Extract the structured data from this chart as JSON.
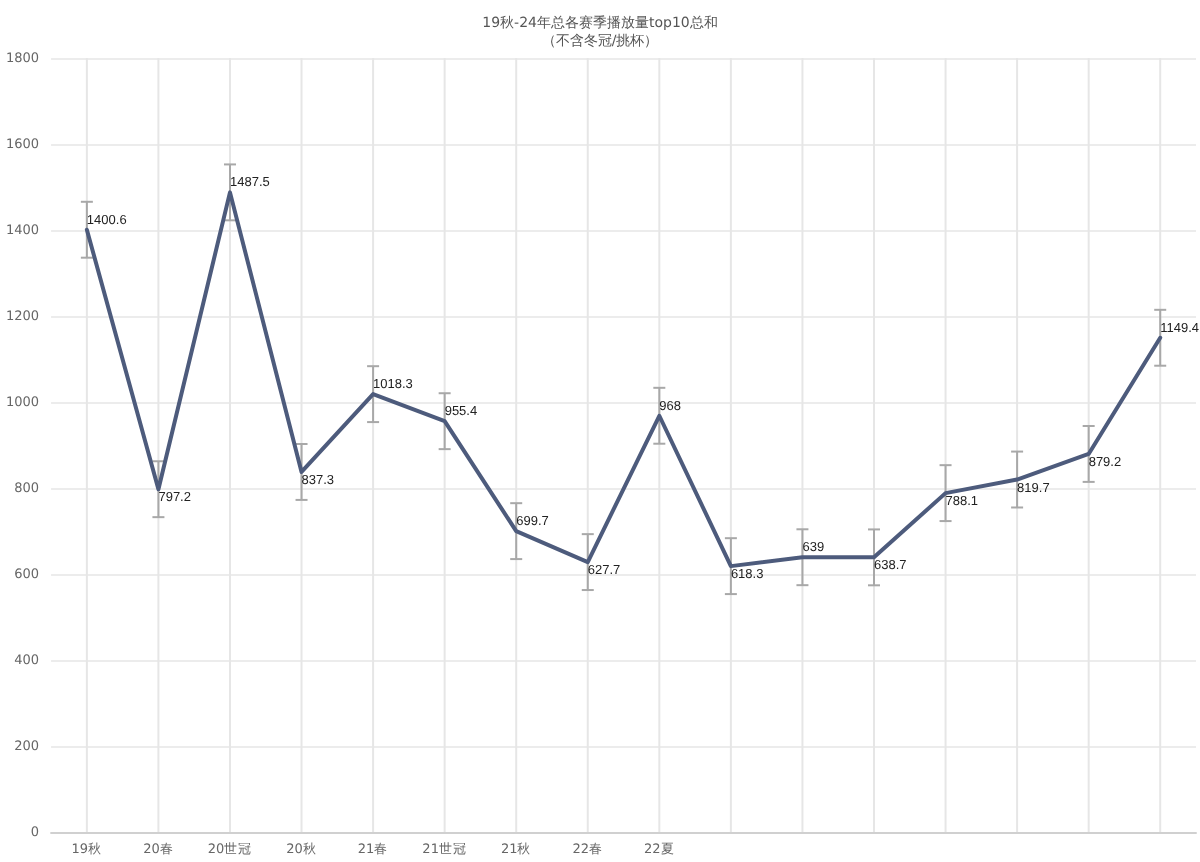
{
  "chart_data": {
    "type": "line",
    "title": "19秋-24年总各赛季播放量top10总和",
    "subtitle": "（不含冬冠/挑杯）",
    "categories": [
      "19秋",
      "20春",
      "20世冠",
      "20秋",
      "21春",
      "21世冠",
      "21秋",
      "22春",
      "22夏",
      null,
      null,
      null,
      null,
      null,
      null,
      null
    ],
    "series": [
      {
        "color": "#4d5b7c",
        "values": [
          1400.6,
          797.2,
          1487.5,
          837.3,
          1018.3,
          955.4,
          699.7,
          627.7,
          968,
          618.3,
          639,
          638.7,
          788.1,
          819.7,
          879.2,
          1149.4
        ],
        "errors": [
          65,
          65,
          65,
          65,
          65,
          65,
          65,
          65,
          65,
          65,
          65,
          65,
          65,
          65,
          65,
          65
        ]
      }
    ],
    "ylim": [
      0,
      1800
    ],
    "yticks": [
      0,
      200,
      400,
      600,
      800,
      1000,
      1200,
      1400,
      1600,
      1800
    ],
    "grid": true,
    "marker": "none",
    "line_style": "solid",
    "data_labels": true
  }
}
